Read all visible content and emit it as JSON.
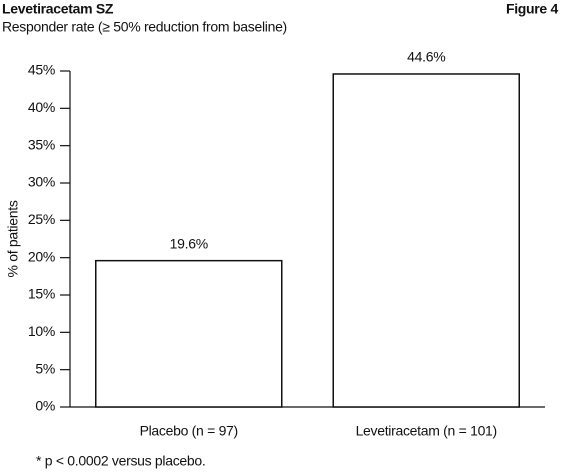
{
  "chart_data": {
    "type": "bar",
    "title": "Levetiracetam SZ",
    "figure_label": "Figure 4",
    "subtitle": "Responder rate (≥ 50% reduction from baseline)",
    "y_label": "% of patients",
    "categories": [
      "Placebo (n = 97)",
      "Levetiracetam (n = 101)"
    ],
    "values": [
      19.6,
      44.6
    ],
    "value_labels": [
      "19.6%",
      "44.6%"
    ],
    "color": "#ffffff",
    "ylim": [
      0,
      45
    ],
    "yticks": [
      {
        "value": 0,
        "label": "0%"
      },
      {
        "value": 5,
        "label": "5%"
      },
      {
        "value": 10,
        "label": "10%"
      },
      {
        "value": 15,
        "label": "15%"
      },
      {
        "value": 20,
        "label": "20%"
      },
      {
        "value": 25,
        "label": "25%"
      },
      {
        "value": 30,
        "label": "30%"
      },
      {
        "value": 35,
        "label": "35%"
      },
      {
        "value": 40,
        "label": "40%"
      },
      {
        "value": 45,
        "label": "45%"
      }
    ],
    "grid": false,
    "footnote": "* p < 0.0002 versus placebo."
  }
}
